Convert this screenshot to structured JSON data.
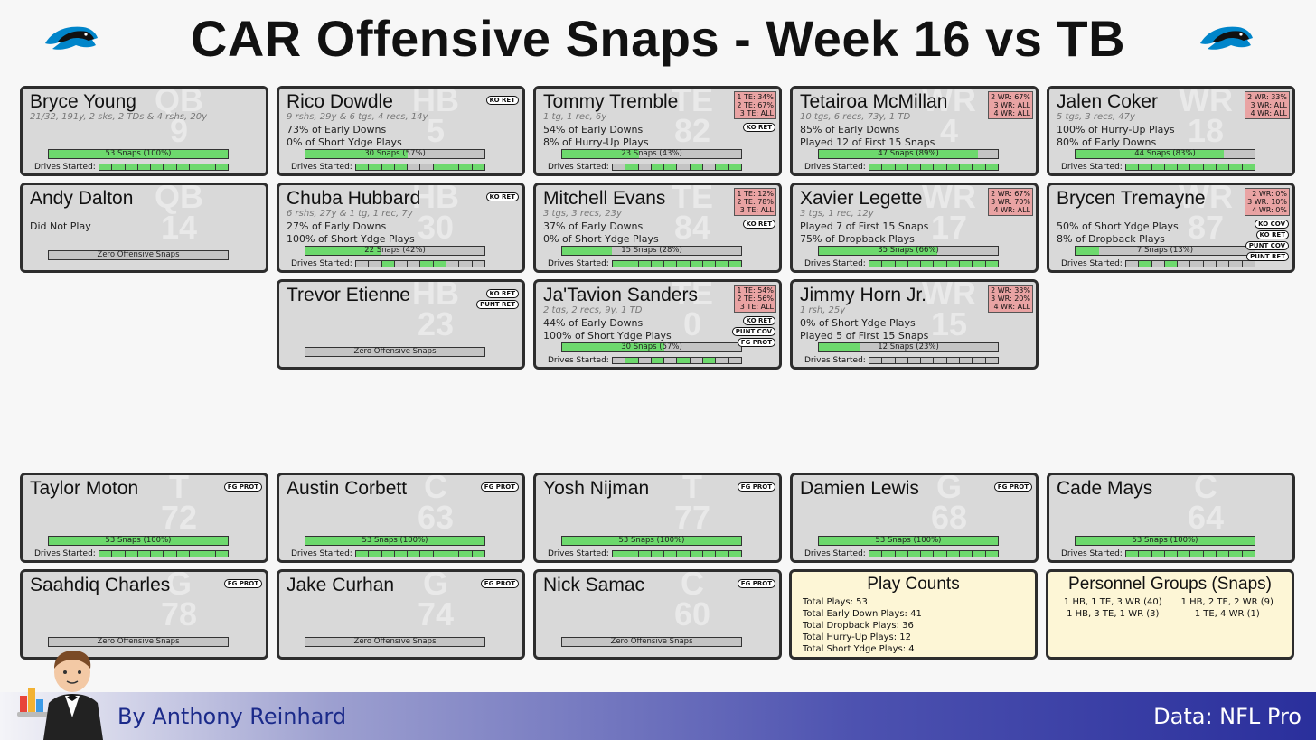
{
  "title": "CAR Offensive Snaps - Week 16 vs TB",
  "colors": {
    "snap_green": "#6dd96d",
    "bar_gray": "#c4c4c4",
    "card_bg": "#d9d9d9",
    "package_red": "#e9a3a3",
    "info_bg": "#fdf6d6",
    "footer_blue": "#2a2f9c"
  },
  "icons": {
    "team_logo": "panther-logo-icon",
    "author": "butler-mascot-icon"
  },
  "drives_label": "Drives Started:",
  "players": [
    {
      "name": "Bryce Young",
      "pos": "QB",
      "num": "9",
      "stats": "21/32, 191y, 2 sks, 2 TDs & 4 rshs, 20y",
      "lines": [],
      "snap_label": "53 Snaps (100%)",
      "snap_pct": 100,
      "drives": [
        1,
        1,
        1,
        1,
        1,
        1,
        1,
        1,
        1,
        1
      ],
      "packages": [],
      "tags": []
    },
    {
      "name": "Rico Dowdle",
      "pos": "HB",
      "num": "5",
      "stats": "9 rshs, 29y & 6 tgs, 4 recs, 14y",
      "lines": [
        "73% of Early Downs",
        "0% of Short Ydge Plays"
      ],
      "snap_label": "30 Snaps (57%)",
      "snap_pct": 57,
      "drives": [
        1,
        1,
        1,
        1,
        0,
        0,
        1,
        1,
        1,
        1
      ],
      "packages": [],
      "tags": [
        "KO RET"
      ]
    },
    {
      "name": "Tommy Tremble",
      "pos": "TE",
      "num": "82",
      "stats": "1 tg, 1 rec, 6y",
      "lines": [
        "54% of Early Downs",
        "8% of Hurry-Up Plays"
      ],
      "snap_label": "23 Snaps (43%)",
      "snap_pct": 43,
      "drives": [
        0,
        1,
        0,
        1,
        1,
        0,
        1,
        0,
        1,
        1
      ],
      "packages": [
        "1 TE: 34%",
        "2 TE: 67%",
        "3 TE: ALL"
      ],
      "tags": [
        "KO RET"
      ]
    },
    {
      "name": "Tetairoa McMillan",
      "pos": "WR",
      "num": "4",
      "stats": "10 tgs, 6 recs, 73y, 1 TD",
      "lines": [
        "85% of Early Downs",
        "Played 12 of First 15 Snaps"
      ],
      "snap_label": "47 Snaps (89%)",
      "snap_pct": 89,
      "drives": [
        1,
        1,
        1,
        1,
        1,
        1,
        1,
        1,
        1,
        1
      ],
      "packages": [
        "2 WR: 67%",
        "3 WR: ALL",
        "4 WR: ALL"
      ],
      "tags": []
    },
    {
      "name": "Jalen Coker",
      "pos": "WR",
      "num": "18",
      "stats": "5 tgs, 3 recs, 47y",
      "lines": [
        "100% of Hurry-Up Plays",
        "80% of Early Downs"
      ],
      "snap_label": "44 Snaps (83%)",
      "snap_pct": 83,
      "drives": [
        1,
        1,
        1,
        1,
        1,
        1,
        1,
        1,
        1,
        1
      ],
      "packages": [
        "2 WR: 33%",
        "3 WR: ALL",
        "4 WR: ALL"
      ],
      "tags": []
    },
    {
      "name": "Andy Dalton",
      "pos": "QB",
      "num": "14",
      "stats": "",
      "lines": [
        "Did Not Play"
      ],
      "snap_label": "Zero Offensive Snaps",
      "snap_pct": 0,
      "drives": [],
      "packages": [],
      "tags": []
    },
    {
      "name": "Chuba Hubbard",
      "pos": "HB",
      "num": "30",
      "stats": "6 rshs, 27y & 1 tg, 1 rec, 7y",
      "lines": [
        "27% of Early Downs",
        "100% of Short Ydge Plays"
      ],
      "snap_label": "22 Snaps (42%)",
      "snap_pct": 42,
      "drives": [
        0,
        0,
        1,
        0,
        0,
        1,
        1,
        0,
        0,
        0
      ],
      "packages": [],
      "tags": [
        "KO RET"
      ]
    },
    {
      "name": "Mitchell Evans",
      "pos": "TE",
      "num": "84",
      "stats": "3 tgs, 3 recs, 23y",
      "lines": [
        "37% of Early Downs",
        "0% of Short Ydge Plays"
      ],
      "snap_label": "15 Snaps (28%)",
      "snap_pct": 28,
      "drives": [
        1,
        1,
        1,
        1,
        1,
        1,
        1,
        1,
        1,
        1
      ],
      "packages": [
        "1 TE: 12%",
        "2 TE: 78%",
        "3 TE: ALL"
      ],
      "tags": [
        "KO RET"
      ]
    },
    {
      "name": "Xavier Legette",
      "pos": "WR",
      "num": "17",
      "stats": "3 tgs, 1 rec, 12y",
      "lines": [
        "Played 7 of First 15 Snaps",
        "75% of Dropback Plays"
      ],
      "snap_label": "35 Snaps (66%)",
      "snap_pct": 66,
      "drives": [
        1,
        1,
        1,
        1,
        1,
        1,
        1,
        1,
        1,
        1
      ],
      "packages": [
        "2 WR: 67%",
        "3 WR: 70%",
        "4 WR: ALL"
      ],
      "tags": []
    },
    {
      "name": "Brycen Tremayne",
      "pos": "WR",
      "num": "87",
      "stats": "",
      "lines": [
        "50% of Short Ydge Plays",
        "8% of Dropback Plays"
      ],
      "snap_label": "7 Snaps (13%)",
      "snap_pct": 13,
      "drives": [
        0,
        1,
        0,
        1,
        0,
        0,
        0,
        0,
        0,
        0
      ],
      "packages": [
        "2 WR:  0%",
        "3 WR: 10%",
        "4 WR:  0%"
      ],
      "tags": [
        "KO COV",
        "KO RET",
        "PUNT COV",
        "PUNT RET"
      ]
    },
    {
      "name": "Trevor Etienne",
      "pos": "HB",
      "num": "23",
      "stats": "",
      "lines": [],
      "snap_label": "Zero Offensive Snaps",
      "snap_pct": 0,
      "drives": [],
      "packages": [],
      "tags": [
        "KO RET",
        "PUNT RET"
      ]
    },
    {
      "name": "Ja'Tavion Sanders",
      "pos": "TE",
      "num": "0",
      "stats": "2 tgs, 2 recs, 9y, 1 TD",
      "lines": [
        "44% of Early Downs",
        "100% of Short Ydge Plays"
      ],
      "snap_label": "30 Snaps (57%)",
      "snap_pct": 57,
      "drives": [
        0,
        1,
        0,
        1,
        0,
        1,
        0,
        1,
        0,
        0
      ],
      "packages": [
        "1 TE: 54%",
        "2 TE: 56%",
        "3 TE: ALL"
      ],
      "tags": [
        "KO RET",
        "PUNT COV",
        "FG PROT"
      ]
    },
    {
      "name": "Jimmy Horn Jr.",
      "pos": "WR",
      "num": "15",
      "stats": "1 rsh, 25y",
      "lines": [
        "0% of Short Ydge Plays",
        "Played 5 of First 15 Snaps"
      ],
      "snap_label": "12 Snaps (23%)",
      "snap_pct": 23,
      "drives": [
        0,
        0,
        0,
        0,
        0,
        0,
        0,
        0,
        0,
        0
      ],
      "packages": [
        "2 WR: 33%",
        "3 WR: 20%",
        "4 WR: ALL"
      ],
      "tags": []
    },
    {
      "name": "Taylor Moton",
      "pos": "T",
      "num": "72",
      "stats": "",
      "lines": [],
      "snap_label": "53 Snaps (100%)",
      "snap_pct": 100,
      "drives": [
        1,
        1,
        1,
        1,
        1,
        1,
        1,
        1,
        1,
        1
      ],
      "packages": [],
      "tags": [
        "FG PROT"
      ]
    },
    {
      "name": "Austin Corbett",
      "pos": "C",
      "num": "63",
      "stats": "",
      "lines": [],
      "snap_label": "53 Snaps (100%)",
      "snap_pct": 100,
      "drives": [
        1,
        1,
        1,
        1,
        1,
        1,
        1,
        1,
        1,
        1
      ],
      "packages": [],
      "tags": [
        "FG PROT"
      ]
    },
    {
      "name": "Yosh Nijman",
      "pos": "T",
      "num": "77",
      "stats": "",
      "lines": [],
      "snap_label": "53 Snaps (100%)",
      "snap_pct": 100,
      "drives": [
        1,
        1,
        1,
        1,
        1,
        1,
        1,
        1,
        1,
        1
      ],
      "packages": [],
      "tags": [
        "FG PROT"
      ]
    },
    {
      "name": "Damien Lewis",
      "pos": "G",
      "num": "68",
      "stats": "",
      "lines": [],
      "snap_label": "53 Snaps (100%)",
      "snap_pct": 100,
      "drives": [
        1,
        1,
        1,
        1,
        1,
        1,
        1,
        1,
        1,
        1
      ],
      "packages": [],
      "tags": [
        "FG PROT"
      ]
    },
    {
      "name": "Cade Mays",
      "pos": "C",
      "num": "64",
      "stats": "",
      "lines": [],
      "snap_label": "53 Snaps (100%)",
      "snap_pct": 100,
      "drives": [
        1,
        1,
        1,
        1,
        1,
        1,
        1,
        1,
        1,
        1
      ],
      "packages": [],
      "tags": []
    },
    {
      "name": "Saahdiq Charles",
      "pos": "G",
      "num": "78",
      "stats": "",
      "lines": [],
      "snap_label": "Zero Offensive Snaps",
      "snap_pct": 0,
      "drives": [],
      "packages": [],
      "tags": [
        "FG PROT"
      ]
    },
    {
      "name": "Jake Curhan",
      "pos": "G",
      "num": "74",
      "stats": "",
      "lines": [],
      "snap_label": "Zero Offensive Snaps",
      "snap_pct": 0,
      "drives": [],
      "packages": [],
      "tags": [
        "FG PROT"
      ]
    },
    {
      "name": "Nick Samac",
      "pos": "C",
      "num": "60",
      "stats": "",
      "lines": [],
      "snap_label": "Zero Offensive Snaps",
      "snap_pct": 0,
      "drives": [],
      "packages": [],
      "tags": [
        "FG PROT"
      ]
    }
  ],
  "play_counts": {
    "title": "Play Counts",
    "lines": [
      "Total Plays: 53",
      "Total Early Down Plays: 41",
      "Total Dropback Plays: 36",
      "Total Hurry-Up Plays: 12",
      "Total Short Ydge Plays: 4"
    ]
  },
  "personnel": {
    "title": "Personnel Groups (Snaps)",
    "groups": [
      "1 HB, 1 TE, 3 WR (40)",
      "1 HB, 2 TE, 2 WR (9)",
      "1 HB, 3 TE, 1 WR (3)",
      "1 TE, 4 WR (1)"
    ]
  },
  "footer": {
    "byline": "By Anthony Reinhard",
    "source": "Data: NFL Pro"
  }
}
